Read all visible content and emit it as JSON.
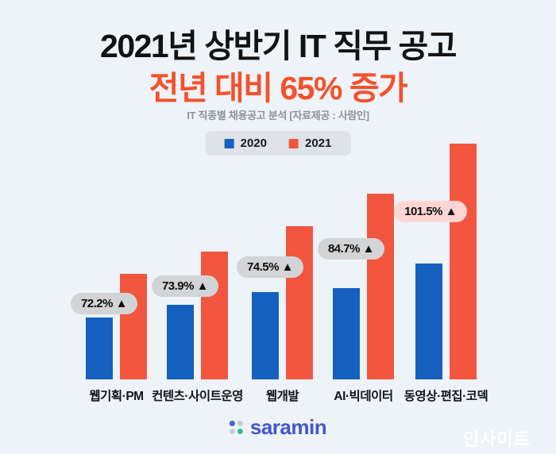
{
  "header": {
    "title_line1": "2021년 상반기 IT 직무 공고",
    "title_line2": "전년 대비 65% 증가",
    "caption": "IT 직종별 채용공고 분석 [자료제공 : 사람인]"
  },
  "legend": {
    "items": [
      {
        "label": "2020",
        "color": "#1560bf"
      },
      {
        "label": "2021",
        "color": "#f2563f"
      }
    ]
  },
  "chart_data": {
    "type": "bar",
    "title": "2021년 상반기 IT 직무 공고 전년 대비 65% 증가",
    "categories": [
      "웹기획·PM",
      "컨텐츠·사이트운영",
      "웹개발",
      "AI·빅데이터",
      "동영상·편집·코덱"
    ],
    "series": [
      {
        "name": "2020",
        "color": "#1560bf",
        "values": [
          78,
          94,
          110,
          115,
          146
        ]
      },
      {
        "name": "2021",
        "color": "#f2563f",
        "values": [
          133,
          161,
          193,
          234,
          297
        ]
      }
    ],
    "value_note": "relative bar heights; no numeric axis shown in source",
    "growth_labels": [
      {
        "label": "72.2% ▲",
        "highlight": false
      },
      {
        "label": "73.9% ▲",
        "highlight": false
      },
      {
        "label": "74.5% ▲",
        "highlight": false
      },
      {
        "label": "84.7% ▲",
        "highlight": false
      },
      {
        "label": "101.5% ▲",
        "highlight": true
      }
    ],
    "legend_position": "top",
    "grid": false
  },
  "footer": {
    "logo_text": "saramin",
    "watermark": "인사이트"
  },
  "colors": {
    "background": "#edf3f7",
    "accent_orange": "#f4512c",
    "bar_2020": "#1560bf",
    "bar_2021": "#f2563f",
    "pill_gray": "#d3d4d6",
    "pill_pink": "#fdd6d4",
    "legend_bg": "#dfe3e8",
    "logo_blue": "#4356c9",
    "logo_dot_blue": "#4a5fd6",
    "logo_dot_gray": "#c6ccd6",
    "logo_dot_green": "#2fbf8f"
  }
}
